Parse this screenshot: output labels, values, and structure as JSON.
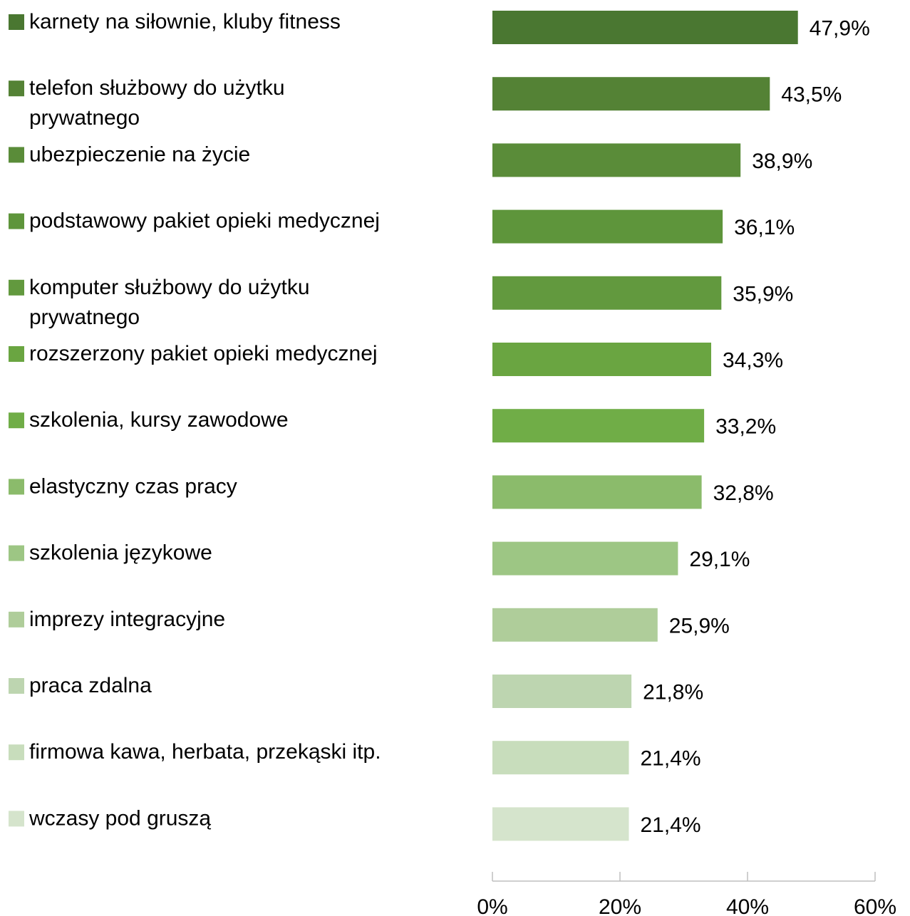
{
  "chart_data": {
    "type": "bar",
    "orientation": "horizontal",
    "categories": [
      [
        "karnety na siłownie, kluby fitness"
      ],
      [
        "telefon służbowy do użytku",
        "prywatnego"
      ],
      [
        "ubezpieczenie na życie"
      ],
      [
        "podstawowy pakiet opieki medycznej"
      ],
      [
        "komputer służbowy do użytku",
        "prywatnego"
      ],
      [
        "rozszerzony pakiet opieki medycznej"
      ],
      [
        "szkolenia, kursy zawodowe"
      ],
      [
        "elastyczny czas pracy"
      ],
      [
        "szkolenia językowe"
      ],
      [
        "imprezy integracyjne"
      ],
      [
        "praca zdalna"
      ],
      [
        "firmowa kawa, herbata, przekąski itp."
      ],
      [
        "wczasy pod gruszą"
      ]
    ],
    "values": [
      47.9,
      43.5,
      38.9,
      36.1,
      35.9,
      34.3,
      33.2,
      32.8,
      29.1,
      25.9,
      21.8,
      21.4,
      21.4
    ],
    "value_labels": [
      "47,9%",
      "43,5%",
      "38,9%",
      "36,1%",
      "35,9%",
      "34,3%",
      "33,2%",
      "32,8%",
      "29,1%",
      "25,9%",
      "21,8%",
      "21,4%",
      "21,4%"
    ],
    "colors": [
      "#4a7731",
      "#548235",
      "#5a8c39",
      "#5e953b",
      "#62993e",
      "#6aa541",
      "#70ad47",
      "#8bbb6b",
      "#9dc684",
      "#afcd9a",
      "#bdd5b0",
      "#c8ddbc",
      "#d5e4cc"
    ],
    "xlim": [
      0,
      60
    ],
    "x_ticks": [
      0,
      20,
      40,
      60
    ],
    "x_tick_labels": [
      "0%",
      "20%",
      "40%",
      "60%"
    ],
    "legend_position": "left",
    "grid": false
  }
}
